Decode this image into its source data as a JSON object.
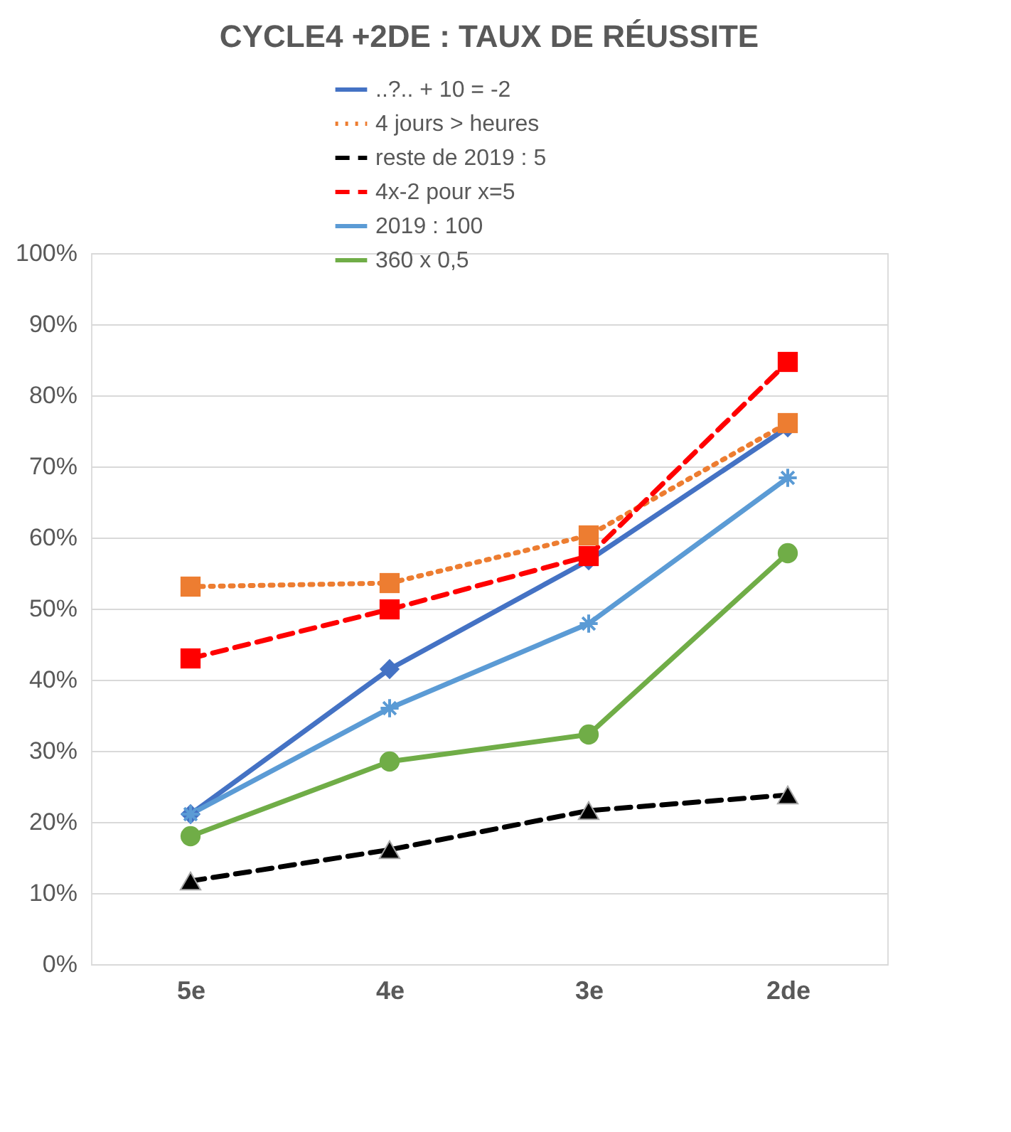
{
  "chart_data": {
    "type": "line",
    "title": "CYCLE4 +2DE : TAUX DE RÉUSSITE",
    "categories": [
      "5e",
      "4e",
      "3e",
      "2de"
    ],
    "series": [
      {
        "name": "..?.. + 10 = -2",
        "color": "#4472c4",
        "marker": "diamond",
        "line_style": "solid",
        "values": [
          21.1,
          41.5,
          56.8,
          75.5
        ]
      },
      {
        "name": "4 jours > heures",
        "color": "#ed7d31",
        "marker": "square",
        "line_style": "dotted",
        "values": [
          53.1,
          53.6,
          60.3,
          76.1
        ]
      },
      {
        "name": "reste de 2019 : 5",
        "color": "#000000",
        "marker": "triangle",
        "line_style": "dashed",
        "values": [
          11.7,
          16.1,
          21.6,
          23.8
        ]
      },
      {
        "name": "4x-2 pour x=5",
        "color": "#ff0000",
        "marker": "square",
        "line_style": "dashed",
        "values": [
          43.0,
          49.9,
          57.4,
          84.7
        ]
      },
      {
        "name": "2019 : 100",
        "color": "#5b9bd5",
        "marker": "cross",
        "line_style": "solid",
        "values": [
          21.1,
          36.0,
          47.9,
          68.4
        ]
      },
      {
        "name": "360 x 0,5",
        "color": "#70ad47",
        "marker": "circle",
        "line_style": "solid",
        "values": [
          18.0,
          28.5,
          32.3,
          57.8
        ]
      }
    ],
    "ylim": [
      0,
      100
    ],
    "yticks": [
      {
        "value": 0,
        "label": "0%"
      },
      {
        "value": 10,
        "label": "10%"
      },
      {
        "value": 20,
        "label": "20%"
      },
      {
        "value": 30,
        "label": "30%"
      },
      {
        "value": 40,
        "label": "40%"
      },
      {
        "value": 50,
        "label": "50%"
      },
      {
        "value": 60,
        "label": "60%"
      },
      {
        "value": 70,
        "label": "70%"
      },
      {
        "value": 80,
        "label": "80%"
      },
      {
        "value": 90,
        "label": "90%"
      },
      {
        "value": 100,
        "label": "100%"
      }
    ],
    "grid": "y",
    "legend": "top"
  }
}
